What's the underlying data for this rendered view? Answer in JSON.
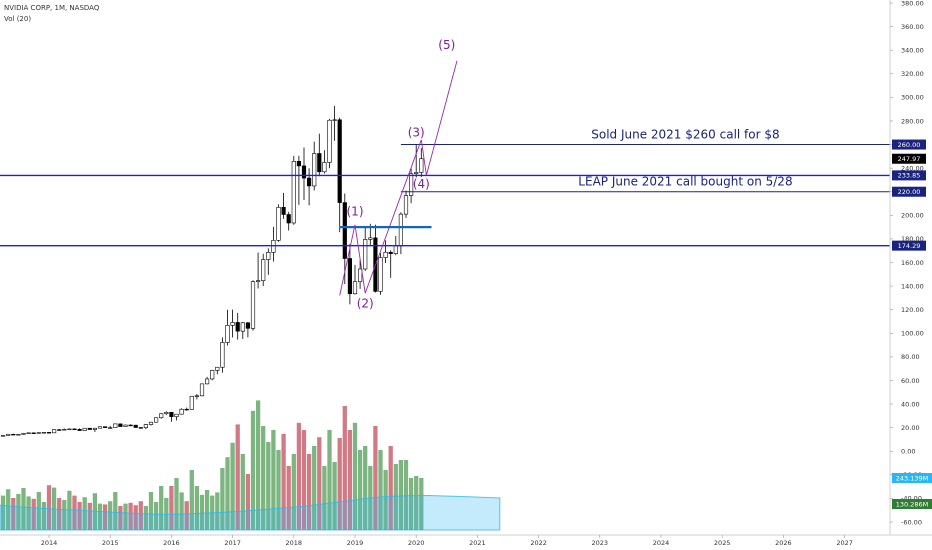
{
  "legend": {
    "symbol": "NVIDIA CORP, 1M, NASDAQ",
    "volume": "Vol (20)"
  },
  "chart_data": {
    "type": "candlestick",
    "price_ylim": [
      -60,
      380
    ],
    "price_ticks": [
      "380.00",
      "360.00",
      "340.00",
      "320.00",
      "300.00",
      "280.00",
      "260.00",
      "240.00",
      "220.00",
      "200.00",
      "180.00",
      "160.00",
      "140.00",
      "120.00",
      "100.00",
      "80.00",
      "60.00",
      "40.00",
      "20.00",
      "0.00",
      "-20.00",
      "-40.00",
      "-60.00"
    ],
    "x_ticks": [
      "2014",
      "2015",
      "2016",
      "2017",
      "2018",
      "2019",
      "2020",
      "2021",
      "2022",
      "2023",
      "2024",
      "2025",
      "2026",
      "2027"
    ],
    "price_labels": [
      {
        "text": "260.00",
        "value": 260,
        "color": "#1a237e"
      },
      {
        "text": "247.97",
        "value": 247.97,
        "color": "#000000"
      },
      {
        "text": "233.85",
        "value": 233.85,
        "color": "#1a237e"
      },
      {
        "text": "220.00",
        "value": 220,
        "color": "#1a237e"
      },
      {
        "text": "174.29",
        "value": 174.29,
        "color": "#1a237e"
      }
    ],
    "volume_labels": [
      {
        "text": "243.139M",
        "color": "#29b6f6"
      },
      {
        "text": "130.286M",
        "color": "#2e7d32"
      }
    ],
    "horizontal_lines": [
      {
        "price": 260,
        "color": "#1a237e",
        "start": "2019-10",
        "label": "Sold June 2021 $260 call for $8"
      },
      {
        "price": 233.85,
        "color": "#1a1aff",
        "start": "2013-01",
        "label": ""
      },
      {
        "price": 220,
        "color": "#1a237e",
        "start": "2019-10",
        "label": "LEAP June 2021 call bought on 5/28"
      },
      {
        "price": 174.29,
        "color": "#1a1aff",
        "start": "2013-01",
        "label": ""
      },
      {
        "price": 190,
        "color": "#1565c0",
        "start": "2018-10",
        "end": "2020-04",
        "label": ""
      }
    ],
    "wave_labels": [
      {
        "text": "(1)",
        "date": "2019-01",
        "price": 200
      },
      {
        "text": "(2)",
        "date": "2019-03",
        "price": 122
      },
      {
        "text": "(3)",
        "date": "2020-01",
        "price": 267
      },
      {
        "text": "(4)",
        "date": "2020-02",
        "price": 223
      },
      {
        "text": "(5)",
        "date": "2020-07",
        "price": 341
      }
    ],
    "wave_path": [
      {
        "date": "2018-10",
        "price": 132
      },
      {
        "date": "2019-01",
        "price": 192
      },
      {
        "date": "2019-03",
        "price": 134
      },
      {
        "date": "2020-02",
        "price": 264
      },
      {
        "date": "2020-03",
        "price": 234
      },
      {
        "date": "2020-09",
        "price": 331
      }
    ],
    "candles": [
      [
        "2013-01",
        12.8,
        13.1,
        12.5,
        12.9
      ],
      [
        "2013-02",
        12.9,
        13.1,
        12.6,
        12.8
      ],
      [
        "2013-03",
        12.8,
        13.2,
        12.6,
        13.0
      ],
      [
        "2013-04",
        13.0,
        13.5,
        12.8,
        13.4
      ],
      [
        "2013-05",
        13.4,
        14.6,
        13.2,
        14.4
      ],
      [
        "2013-06",
        14.4,
        14.7,
        13.8,
        14.1
      ],
      [
        "2013-07",
        14.1,
        14.6,
        13.9,
        14.3
      ],
      [
        "2013-08",
        14.3,
        15.6,
        14.1,
        15.2
      ],
      [
        "2013-09",
        15.2,
        15.8,
        14.9,
        15.6
      ],
      [
        "2013-10",
        15.6,
        15.9,
        14.8,
        15.2
      ],
      [
        "2013-11",
        15.2,
        16.0,
        15.0,
        15.8
      ],
      [
        "2013-12",
        15.8,
        16.2,
        15.5,
        16.0
      ],
      [
        "2014-01",
        16.0,
        16.2,
        15.1,
        15.6
      ],
      [
        "2014-02",
        15.6,
        18.6,
        15.5,
        18.3
      ],
      [
        "2014-03",
        18.3,
        18.9,
        17.5,
        17.9
      ],
      [
        "2014-04",
        17.9,
        19.3,
        17.8,
        18.6
      ],
      [
        "2014-05",
        18.6,
        19.2,
        18.4,
        18.9
      ],
      [
        "2014-06",
        18.9,
        19.4,
        18.5,
        18.5
      ],
      [
        "2014-07",
        18.5,
        19.4,
        17.4,
        17.5
      ],
      [
        "2014-08",
        17.5,
        19.5,
        17.4,
        19.5
      ],
      [
        "2014-09",
        19.5,
        19.7,
        18.2,
        18.4
      ],
      [
        "2014-10",
        18.4,
        19.6,
        16.3,
        19.5
      ],
      [
        "2014-11",
        19.5,
        20.8,
        19.3,
        20.8
      ],
      [
        "2014-12",
        20.8,
        21.0,
        19.8,
        20.0
      ],
      [
        "2015-01",
        20.0,
        21.6,
        19.0,
        20.0
      ],
      [
        "2015-02",
        20.0,
        23.5,
        19.9,
        23.2
      ],
      [
        "2015-03",
        23.2,
        23.4,
        20.9,
        20.9
      ],
      [
        "2015-04",
        20.9,
        22.7,
        20.7,
        22.2
      ],
      [
        "2015-05",
        22.2,
        22.8,
        21.3,
        22.1
      ],
      [
        "2015-06",
        22.1,
        22.3,
        20.1,
        20.1
      ],
      [
        "2015-07",
        20.1,
        20.4,
        19.2,
        20.0
      ],
      [
        "2015-08",
        20.0,
        23.1,
        18.6,
        22.6
      ],
      [
        "2015-09",
        22.6,
        25.0,
        21.8,
        24.6
      ],
      [
        "2015-10",
        24.6,
        28.6,
        24.2,
        28.4
      ],
      [
        "2015-11",
        28.4,
        32.2,
        27.5,
        31.8
      ],
      [
        "2015-12",
        31.8,
        33.9,
        30.6,
        33.0
      ],
      [
        "2016-01",
        33.0,
        33.0,
        25.0,
        29.3
      ],
      [
        "2016-02",
        29.3,
        31.6,
        26.2,
        31.4
      ],
      [
        "2016-03",
        31.4,
        36.4,
        31.0,
        35.6
      ],
      [
        "2016-04",
        35.6,
        37.0,
        34.4,
        35.5
      ],
      [
        "2016-05",
        35.5,
        46.8,
        35.3,
        46.6
      ],
      [
        "2016-06",
        46.6,
        48.4,
        44.0,
        47.0
      ],
      [
        "2016-07",
        47.0,
        57.3,
        46.5,
        57.1
      ],
      [
        "2016-08",
        57.1,
        63.0,
        56.7,
        61.3
      ],
      [
        "2016-09",
        61.3,
        69.0,
        60.1,
        68.5
      ],
      [
        "2016-10",
        68.5,
        71.5,
        65.2,
        71.2
      ],
      [
        "2016-11",
        71.2,
        96.5,
        66.6,
        92.2
      ],
      [
        "2016-12",
        92.2,
        119.9,
        89.6,
        106.7
      ],
      [
        "2017-01",
        106.7,
        120.0,
        96.4,
        109.2
      ],
      [
        "2017-02",
        109.2,
        117.3,
        94.6,
        101.8
      ],
      [
        "2017-03",
        101.8,
        109.5,
        95.2,
        108.9
      ],
      [
        "2017-04",
        108.9,
        109.6,
        96.5,
        104.2
      ],
      [
        "2017-05",
        104.2,
        145.0,
        102.2,
        143.7
      ],
      [
        "2017-06",
        143.7,
        168.5,
        138.0,
        144.6
      ],
      [
        "2017-07",
        144.6,
        167.4,
        140.0,
        162.5
      ],
      [
        "2017-08",
        162.5,
        172.0,
        149.5,
        168.6
      ],
      [
        "2017-09",
        168.6,
        190.2,
        160.9,
        178.8
      ],
      [
        "2017-10",
        178.8,
        209.3,
        177.6,
        206.8
      ],
      [
        "2017-11",
        206.8,
        219.0,
        197.0,
        200.7
      ],
      [
        "2017-12",
        200.7,
        203.0,
        187.1,
        193.5
      ],
      [
        "2018-01",
        193.5,
        250.4,
        192.0,
        245.8
      ],
      [
        "2018-02",
        245.8,
        250.5,
        208.9,
        241.9
      ],
      [
        "2018-03",
        241.9,
        257.5,
        213.0,
        231.6
      ],
      [
        "2018-04",
        231.6,
        239.9,
        208.4,
        224.9
      ],
      [
        "2018-05",
        224.9,
        262.5,
        221.1,
        252.4
      ],
      [
        "2018-06",
        252.4,
        269.2,
        233.1,
        236.9
      ],
      [
        "2018-07",
        236.9,
        255.2,
        235.5,
        244.8
      ],
      [
        "2018-08",
        244.8,
        281.8,
        239.9,
        280.6
      ],
      [
        "2018-09",
        280.6,
        292.8,
        263.2,
        281.0
      ],
      [
        "2018-10",
        281.0,
        282.8,
        185.7,
        210.8
      ],
      [
        "2018-11",
        210.8,
        218.5,
        141.7,
        163.4
      ],
      [
        "2018-12",
        163.4,
        175.6,
        124.5,
        133.5
      ],
      [
        "2019-01",
        133.5,
        158.0,
        132.8,
        143.7
      ],
      [
        "2019-02",
        143.7,
        162.0,
        137.6,
        154.5
      ],
      [
        "2019-03",
        154.5,
        190.2,
        153.0,
        179.6
      ],
      [
        "2019-04",
        179.6,
        192.8,
        173.9,
        180.9
      ],
      [
        "2019-05",
        180.9,
        192.0,
        134.6,
        135.5
      ],
      [
        "2019-06",
        135.5,
        168.0,
        132.6,
        164.2
      ],
      [
        "2019-07",
        164.2,
        178.8,
        159.6,
        168.7
      ],
      [
        "2019-08",
        168.7,
        170.3,
        147.0,
        167.5
      ],
      [
        "2019-09",
        167.5,
        182.4,
        166.2,
        174.1
      ],
      [
        "2019-10",
        174.1,
        202.6,
        167.1,
        201.0
      ],
      [
        "2019-11",
        201.0,
        221.0,
        197.8,
        216.8
      ],
      [
        "2019-12",
        216.8,
        239.9,
        210.2,
        235.3
      ],
      [
        "2020-01",
        235.3,
        259.7,
        232.0,
        236.4
      ],
      [
        "2020-02",
        236.4,
        257.0,
        232.5,
        247.97
      ]
    ],
    "volume": [
      [
        "2013-01",
        95,
        80
      ],
      [
        "2013-02",
        88,
        80
      ],
      [
        "2013-03",
        96,
        80
      ],
      [
        "2013-04",
        86,
        80
      ],
      [
        "2013-05",
        102,
        80
      ],
      [
        "2013-06",
        80,
        80
      ],
      [
        "2013-07",
        90,
        80
      ],
      [
        "2013-08",
        105,
        80
      ],
      [
        "2013-09",
        84,
        80
      ],
      [
        "2013-10",
        78,
        80
      ],
      [
        "2013-11",
        95,
        80
      ],
      [
        "2013-12",
        70,
        80
      ],
      [
        "2014-01",
        112,
        80
      ],
      [
        "2014-02",
        106,
        80
      ],
      [
        "2014-03",
        80,
        80
      ],
      [
        "2014-04",
        75,
        80
      ],
      [
        "2014-05",
        98,
        80
      ],
      [
        "2014-06",
        86,
        80
      ],
      [
        "2014-07",
        70,
        80
      ],
      [
        "2014-08",
        82,
        80
      ],
      [
        "2014-09",
        68,
        80
      ],
      [
        "2014-10",
        92,
        80
      ],
      [
        "2014-11",
        66,
        80
      ],
      [
        "2014-12",
        64,
        80
      ],
      [
        "2015-01",
        72,
        80
      ],
      [
        "2015-02",
        95,
        80
      ],
      [
        "2015-03",
        60,
        80
      ],
      [
        "2015-04",
        66,
        80
      ],
      [
        "2015-05",
        68,
        80
      ],
      [
        "2015-06",
        62,
        80
      ],
      [
        "2015-07",
        72,
        80
      ],
      [
        "2015-08",
        60,
        80
      ],
      [
        "2015-09",
        95,
        80
      ],
      [
        "2015-10",
        70,
        80
      ],
      [
        "2015-11",
        110,
        80
      ],
      [
        "2015-12",
        80,
        80
      ],
      [
        "2016-01",
        110,
        80
      ],
      [
        "2016-02",
        130,
        80
      ],
      [
        "2016-03",
        94,
        80
      ],
      [
        "2016-04",
        72,
        80
      ],
      [
        "2016-05",
        150,
        80
      ],
      [
        "2016-06",
        110,
        80
      ],
      [
        "2016-07",
        88,
        80
      ],
      [
        "2016-08",
        100,
        80
      ],
      [
        "2016-09",
        86,
        80
      ],
      [
        "2016-10",
        94,
        80
      ],
      [
        "2016-11",
        155,
        80
      ],
      [
        "2016-12",
        182,
        80
      ],
      [
        "2017-01",
        218,
        80
      ],
      [
        "2017-02",
        264,
        80
      ],
      [
        "2017-03",
        190,
        80
      ],
      [
        "2017-04",
        140,
        80
      ],
      [
        "2017-05",
        298,
        80
      ],
      [
        "2017-06",
        324,
        80
      ],
      [
        "2017-07",
        260,
        80
      ],
      [
        "2017-08",
        220,
        80
      ],
      [
        "2017-09",
        250,
        80
      ],
      [
        "2017-10",
        200,
        80
      ],
      [
        "2017-11",
        240,
        80
      ],
      [
        "2017-12",
        160,
        80
      ],
      [
        "2018-01",
        190,
        80
      ],
      [
        "2018-02",
        268,
        80
      ],
      [
        "2018-03",
        250,
        80
      ],
      [
        "2018-04",
        190,
        80
      ],
      [
        "2018-05",
        210,
        80
      ],
      [
        "2018-06",
        232,
        80
      ],
      [
        "2018-07",
        160,
        80
      ],
      [
        "2018-08",
        250,
        80
      ],
      [
        "2018-09",
        170,
        80
      ],
      [
        "2018-10",
        230,
        80
      ],
      [
        "2018-11",
        310,
        80
      ],
      [
        "2018-12",
        250,
        80
      ],
      [
        "2019-01",
        268,
        80
      ],
      [
        "2019-02",
        200,
        80
      ],
      [
        "2019-03",
        210,
        80
      ],
      [
        "2019-04",
        160,
        80
      ],
      [
        "2019-05",
        260,
        80
      ],
      [
        "2019-06",
        200,
        80
      ],
      [
        "2019-07",
        150,
        80
      ],
      [
        "2019-08",
        210,
        80
      ],
      [
        "2019-09",
        165,
        80
      ],
      [
        "2019-10",
        175,
        80
      ],
      [
        "2019-11",
        175,
        80
      ],
      [
        "2019-12",
        130,
        80
      ],
      [
        "2020-01",
        135,
        80
      ],
      [
        "2020-02",
        130,
        80
      ]
    ],
    "volume_ma": [
      [
        0,
        150
      ],
      [
        4,
        138
      ],
      [
        8,
        130
      ],
      [
        12,
        122
      ],
      [
        16,
        115
      ],
      [
        20,
        108
      ],
      [
        24,
        100
      ],
      [
        28,
        94
      ],
      [
        32,
        90
      ],
      [
        36,
        92
      ],
      [
        40,
        98
      ],
      [
        44,
        104
      ],
      [
        48,
        112
      ],
      [
        52,
        122
      ],
      [
        56,
        132
      ],
      [
        60,
        145
      ],
      [
        64,
        160
      ],
      [
        68,
        178
      ],
      [
        72,
        195
      ],
      [
        76,
        208
      ],
      [
        80,
        212
      ],
      [
        84,
        214
      ],
      [
        88,
        210
      ],
      [
        92,
        206
      ],
      [
        96,
        200
      ],
      [
        98,
        198
      ]
    ]
  }
}
